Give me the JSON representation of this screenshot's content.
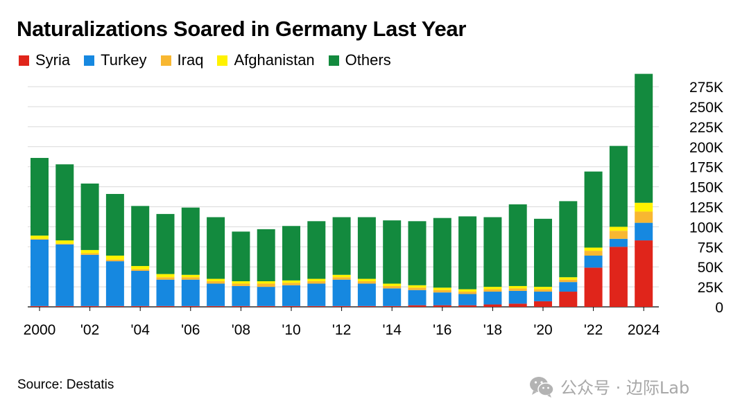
{
  "title": "Naturalizations Soared in Germany Last Year",
  "source": "Source: Destatis",
  "watermark": "公众号 · 边际Lab",
  "colors": {
    "Syria": "#e0251b",
    "Turkey": "#1688e0",
    "Iraq": "#f8b731",
    "Afghanistan": "#fff200",
    "Others": "#138a3e",
    "grid": "#d9d9d9"
  },
  "legend": [
    {
      "name": "Syria",
      "color": "#e0251b"
    },
    {
      "name": "Turkey",
      "color": "#1688e0"
    },
    {
      "name": "Iraq",
      "color": "#f8b731"
    },
    {
      "name": "Afghanistan",
      "color": "#fff200"
    },
    {
      "name": "Others",
      "color": "#138a3e"
    }
  ],
  "chart_data": {
    "type": "bar",
    "stacked": true,
    "title": "Naturalizations Soared in Germany Last Year",
    "categories": [
      "2000",
      "2001",
      "2002",
      "2003",
      "2004",
      "2005",
      "2006",
      "2007",
      "2008",
      "2009",
      "2010",
      "2011",
      "2012",
      "2013",
      "2014",
      "2015",
      "2016",
      "2017",
      "2018",
      "2019",
      "2020",
      "2021",
      "2022",
      "2023",
      "2024"
    ],
    "xtick_labels": [
      "2000",
      "'02",
      "'04",
      "'06",
      "'08",
      "'10",
      "'12",
      "'14",
      "'16",
      "'18",
      "'20",
      "'22",
      "2024"
    ],
    "xtick_indices": [
      0,
      2,
      4,
      6,
      8,
      10,
      12,
      14,
      16,
      18,
      20,
      22,
      24
    ],
    "ytick_labels": [
      "0",
      "25K",
      "50K",
      "75K",
      "100K",
      "125K",
      "150K",
      "175K",
      "200K",
      "225K",
      "250K",
      "275K"
    ],
    "ytick_values": [
      0,
      25000,
      50000,
      75000,
      100000,
      125000,
      150000,
      175000,
      200000,
      225000,
      250000,
      275000
    ],
    "ylim": [
      0,
      295000
    ],
    "y_axis_position": "right",
    "grid": true,
    "legend_position": "top-left",
    "series": [
      {
        "name": "Syria",
        "values": [
          1000,
          1000,
          1000,
          1000,
          1000,
          1000,
          1000,
          1000,
          1000,
          1000,
          1000,
          1000,
          1000,
          1000,
          1000,
          2000,
          2000,
          2000,
          3000,
          4000,
          7000,
          19000,
          49000,
          75000,
          83000
        ]
      },
      {
        "name": "Turkey",
        "values": [
          83000,
          77000,
          64000,
          56000,
          44000,
          33000,
          33000,
          28000,
          25000,
          24000,
          26000,
          28000,
          33000,
          28000,
          22000,
          19000,
          16000,
          14000,
          16000,
          16000,
          12000,
          12000,
          15000,
          10000,
          22000
        ]
      },
      {
        "name": "Iraq",
        "values": [
          1000,
          1000,
          2000,
          2000,
          2000,
          3000,
          3000,
          3000,
          3000,
          4000,
          3000,
          3000,
          3000,
          3000,
          3000,
          3000,
          3000,
          3000,
          3000,
          3000,
          3000,
          3000,
          6000,
          10000,
          14000
        ]
      },
      {
        "name": "Afghanistan",
        "values": [
          4000,
          4000,
          4000,
          5000,
          4000,
          4000,
          3000,
          3000,
          3000,
          3000,
          3000,
          3000,
          3000,
          3000,
          3000,
          3000,
          3000,
          3000,
          3000,
          3000,
          3000,
          3000,
          4000,
          5000,
          11000
        ]
      },
      {
        "name": "Others",
        "values": [
          97000,
          95000,
          83000,
          77000,
          75000,
          75000,
          84000,
          77000,
          62000,
          65000,
          68000,
          72000,
          72000,
          77000,
          79000,
          80000,
          87000,
          91000,
          87000,
          102000,
          85000,
          95000,
          95000,
          101000,
          161000
        ]
      }
    ]
  }
}
